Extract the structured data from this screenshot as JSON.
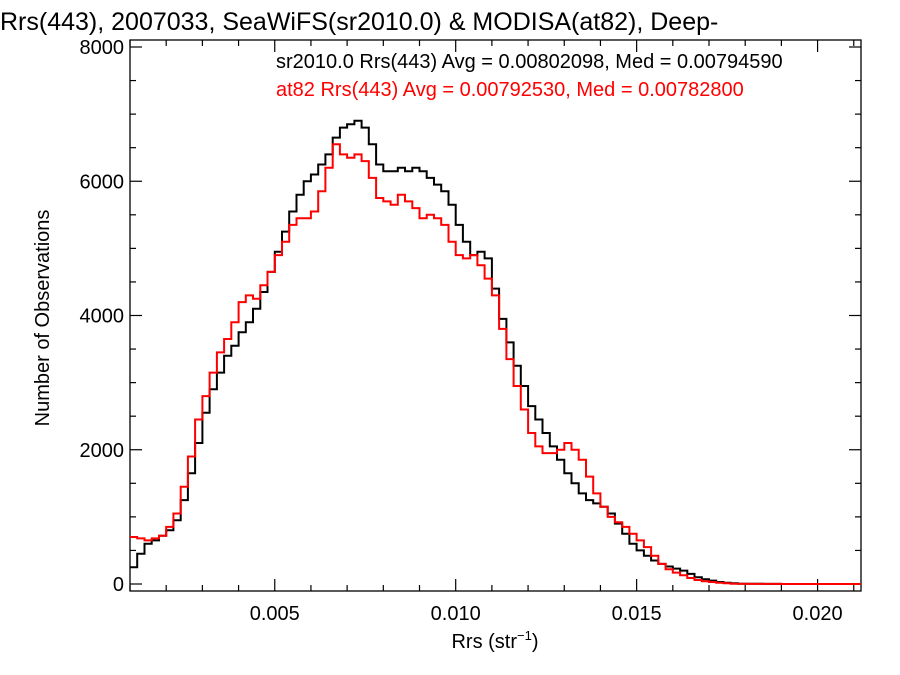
{
  "chart_data": {
    "type": "line",
    "title": "Rrs(443), 2007033, SeaWiFS(sr2010.0) & MODISA(at82), Deep-",
    "xlabel_main": "Rrs (str",
    "xlabel_sup": "−1",
    "xlabel_close": ")",
    "ylabel": "Number of Observations",
    "xlim": [
      0.001,
      0.0212
    ],
    "ylim": [
      0,
      8000
    ],
    "xticks": [
      {
        "v": 0.005,
        "label": "0.005"
      },
      {
        "v": 0.01,
        "label": "0.010"
      },
      {
        "v": 0.015,
        "label": "0.015"
      },
      {
        "v": 0.02,
        "label": "0.020"
      }
    ],
    "yticks": [
      {
        "v": 0,
        "label": "0"
      },
      {
        "v": 2000,
        "label": "2000"
      },
      {
        "v": 4000,
        "label": "4000"
      },
      {
        "v": 6000,
        "label": "6000"
      },
      {
        "v": 8000,
        "label": "8000"
      }
    ],
    "grid": false,
    "legend_position": "top",
    "series": [
      {
        "name": "sr2010.0 Rrs(443) Avg = 0.00802098, Med = 0.00794590",
        "color": "#000000",
        "x": [
          0.001,
          0.0012,
          0.0014,
          0.0016,
          0.0018,
          0.002,
          0.0022,
          0.0024,
          0.0026,
          0.0028,
          0.003,
          0.0032,
          0.0034,
          0.0036,
          0.0038,
          0.004,
          0.0042,
          0.0044,
          0.0046,
          0.0048,
          0.005,
          0.0052,
          0.0054,
          0.0056,
          0.0058,
          0.006,
          0.0062,
          0.0064,
          0.0066,
          0.0068,
          0.007,
          0.0072,
          0.0074,
          0.0076,
          0.0078,
          0.008,
          0.0082,
          0.0084,
          0.0086,
          0.0088,
          0.009,
          0.0092,
          0.0094,
          0.0096,
          0.0098,
          0.01,
          0.0102,
          0.0104,
          0.0106,
          0.0108,
          0.011,
          0.0112,
          0.0114,
          0.0116,
          0.0118,
          0.012,
          0.0122,
          0.0124,
          0.0126,
          0.0128,
          0.013,
          0.0132,
          0.0134,
          0.0136,
          0.0138,
          0.014,
          0.0142,
          0.0144,
          0.0146,
          0.0148,
          0.015,
          0.0152,
          0.0154,
          0.0156,
          0.0158,
          0.016,
          0.0162,
          0.0164,
          0.0166,
          0.0168,
          0.017,
          0.0172,
          0.0174,
          0.0176,
          0.0178,
          0.018,
          0.0185,
          0.019,
          0.02,
          0.0212
        ],
        "y": [
          250,
          450,
          600,
          650,
          720,
          800,
          950,
          1250,
          1650,
          2100,
          2550,
          2900,
          3150,
          3400,
          3550,
          3750,
          3900,
          4100,
          4350,
          4650,
          4950,
          5250,
          5550,
          5800,
          6000,
          6100,
          6250,
          6400,
          6650,
          6800,
          6850,
          6900,
          6800,
          6550,
          6250,
          6150,
          6150,
          6200,
          6150,
          6200,
          6150,
          6050,
          5950,
          5850,
          5650,
          5350,
          5100,
          4900,
          4950,
          4850,
          4400,
          3950,
          3600,
          3250,
          2950,
          2650,
          2450,
          2250,
          2050,
          1850,
          1650,
          1500,
          1350,
          1250,
          1200,
          1150,
          1050,
          900,
          750,
          600,
          500,
          420,
          350,
          300,
          260,
          230,
          200,
          150,
          100,
          70,
          50,
          30,
          20,
          10,
          5,
          3,
          2,
          0,
          0,
          0
        ]
      },
      {
        "name": "at82 Rrs(443) Avg = 0.00792530, Med = 0.00782800",
        "color": "#ff0000",
        "x": [
          0.001,
          0.0012,
          0.0014,
          0.0016,
          0.0018,
          0.002,
          0.0022,
          0.0024,
          0.0026,
          0.0028,
          0.003,
          0.0032,
          0.0034,
          0.0036,
          0.0038,
          0.004,
          0.0042,
          0.0044,
          0.0046,
          0.0048,
          0.005,
          0.0052,
          0.0054,
          0.0056,
          0.0058,
          0.006,
          0.0062,
          0.0064,
          0.0066,
          0.0068,
          0.007,
          0.0072,
          0.0074,
          0.0076,
          0.0078,
          0.008,
          0.0082,
          0.0084,
          0.0086,
          0.0088,
          0.009,
          0.0092,
          0.0094,
          0.0096,
          0.0098,
          0.01,
          0.0102,
          0.0104,
          0.0106,
          0.0108,
          0.011,
          0.0112,
          0.0114,
          0.0116,
          0.0118,
          0.012,
          0.0122,
          0.0124,
          0.0126,
          0.0128,
          0.013,
          0.0132,
          0.0134,
          0.0136,
          0.0138,
          0.014,
          0.0142,
          0.0144,
          0.0146,
          0.0148,
          0.015,
          0.0152,
          0.0154,
          0.0156,
          0.0158,
          0.016,
          0.0162,
          0.0164,
          0.0166,
          0.0168,
          0.017,
          0.0172,
          0.0174,
          0.0176,
          0.0178,
          0.018,
          0.0185,
          0.019,
          0.02,
          0.0212
        ],
        "y": [
          700,
          680,
          650,
          680,
          720,
          850,
          1050,
          1450,
          1900,
          2450,
          2800,
          3150,
          3450,
          3650,
          3900,
          4200,
          4300,
          4250,
          4450,
          4650,
          4900,
          5100,
          5350,
          5450,
          5450,
          5550,
          5850,
          6200,
          6550,
          6400,
          6350,
          6400,
          6300,
          6050,
          5750,
          5700,
          5650,
          5800,
          5700,
          5600,
          5450,
          5500,
          5450,
          5350,
          5100,
          4900,
          4850,
          4900,
          4750,
          4550,
          4300,
          3800,
          3350,
          2950,
          2600,
          2250,
          2050,
          1950,
          1950,
          2000,
          2100,
          2000,
          1850,
          1600,
          1350,
          1150,
          1000,
          920,
          850,
          750,
          650,
          550,
          420,
          300,
          220,
          170,
          130,
          90,
          60,
          40,
          30,
          20,
          10,
          5,
          3,
          2,
          1,
          0,
          0,
          0
        ]
      }
    ]
  }
}
